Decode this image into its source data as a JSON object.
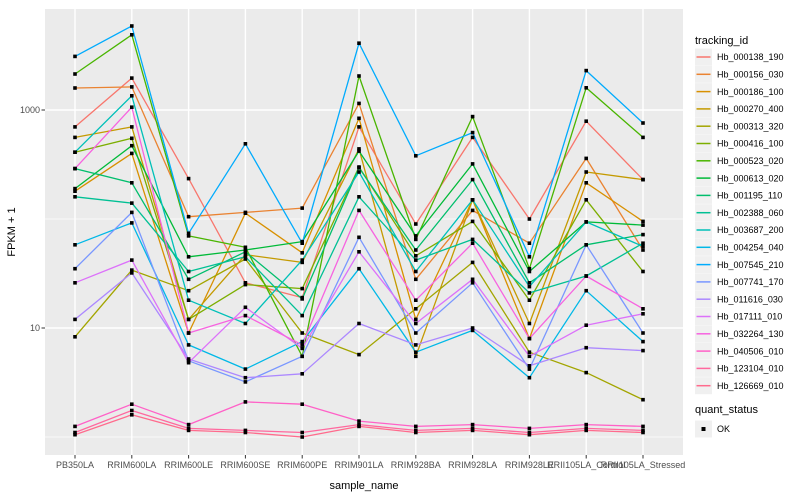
{
  "figure": {
    "panel_bg": "#EBEBEB",
    "grid_color": "#FFFFFF",
    "tick_color": "#333333",
    "tick_label_color": "#4D4D4D",
    "axis_title_color": "#000000",
    "legend_key_bg": "#F0F0F0",
    "marker_color": "#000000"
  },
  "chart_data": {
    "type": "line",
    "title": "",
    "xlabel": "sample_name",
    "ylabel": "FPKM + 1",
    "y_scale": "log10",
    "ylim": [
      0.75,
      8400
    ],
    "grid": true,
    "y_ticks": [
      {
        "value": 10,
        "label": "10"
      },
      {
        "value": 1000,
        "label": "1000"
      }
    ],
    "y_minor": [
      1,
      100
    ],
    "categories": [
      "PB350LA",
      "RRIM600LA",
      "RRIM600LE",
      "RRIM600SE",
      "RRIM600PE",
      "RRIM901LA",
      "RRIM928BA",
      "RRIM928LA",
      "RRIM928LE",
      "RRII105LA_Control",
      "RRII105LA_Stressed"
    ],
    "legend": {
      "title": "tracking_id",
      "position": "right"
    },
    "point_legend": {
      "title": "quant_status",
      "items": [
        {
          "label": "OK",
          "shape": "black-square"
        }
      ]
    },
    "series": [
      {
        "name": "Hb_000138_190",
        "color": "#F8766D",
        "values": [
          700,
          1960,
          235,
          26,
          19,
          700,
          90,
          560,
          100,
          790,
          230
        ]
      },
      {
        "name": "Hb_000156_030",
        "color": "#EA8331",
        "values": [
          1590,
          1630,
          105,
          115,
          126,
          1150,
          28,
          120,
          60,
          360,
          52
        ]
      },
      {
        "name": "Hb_000186_100",
        "color": "#D89000",
        "values": [
          180,
          400,
          9,
          113,
          49,
          840,
          12,
          150,
          8,
          215,
          95
        ]
      },
      {
        "name": "Hb_000270_400",
        "color": "#C49A00",
        "values": [
          560,
          700,
          12,
          47,
          40,
          440,
          5.5,
          150,
          11,
          270,
          230
        ]
      },
      {
        "name": "Hb_000313_320",
        "color": "#A3A500",
        "values": [
          8.3,
          34,
          22,
          43,
          9,
          5.7,
          15,
          40,
          6,
          3.9,
          2.2
        ]
      },
      {
        "name": "Hb_000416_100",
        "color": "#7CAE00",
        "values": [
          410,
          550,
          12,
          25,
          23,
          300,
          46,
          95,
          18,
          150,
          33
        ]
      },
      {
        "name": "Hb_000523_020",
        "color": "#49B500",
        "values": [
          2140,
          4900,
          70,
          55,
          5.5,
          2050,
          65,
          870,
          35,
          1600,
          560
        ]
      },
      {
        "name": "Hb_000613_020",
        "color": "#00BA38",
        "values": [
          190,
          470,
          45,
          52,
          62,
          420,
          70,
          320,
          33,
          94,
          88
        ]
      },
      {
        "name": "Hb_001195_110",
        "color": "#00BE6C",
        "values": [
          290,
          215,
          28,
          50,
          18.5,
          295,
          52,
          230,
          26,
          58,
          72
        ]
      },
      {
        "name": "Hb_002388_060",
        "color": "#00C094",
        "values": [
          160,
          140,
          33,
          45,
          13,
          160,
          42,
          65,
          21,
          30,
          60
        ]
      },
      {
        "name": "Hb_003687_200",
        "color": "#00C0B8",
        "values": [
          410,
          1350,
          18,
          11,
          42,
          270,
          33,
          150,
          24,
          94,
          56
        ]
      },
      {
        "name": "Hb_004254_040",
        "color": "#00B8E7",
        "values": [
          58,
          92,
          7,
          4.2,
          7.5,
          35,
          6,
          9.5,
          3.5,
          22,
          7.5
        ]
      },
      {
        "name": "Hb_007545_210",
        "color": "#00ABFD",
        "values": [
          3100,
          5900,
          74,
          490,
          60,
          4100,
          380,
          620,
          45,
          2300,
          760
        ]
      },
      {
        "name": "Hb_007741_170",
        "color": "#7997FF",
        "values": [
          35,
          115,
          5,
          3.2,
          5.5,
          68,
          9,
          26,
          4.2,
          58,
          9
        ]
      },
      {
        "name": "Hb_011616_030",
        "color": "#AC88FF",
        "values": [
          12,
          32,
          5.2,
          3.5,
          3.8,
          11,
          7,
          10,
          4.5,
          6.6,
          6.2
        ]
      },
      {
        "name": "Hb_017111_010",
        "color": "#DC71FA",
        "values": [
          26,
          42,
          4.8,
          15.5,
          6.5,
          50,
          11,
          28,
          5.5,
          10.6,
          13.5
        ]
      },
      {
        "name": "Hb_032264_130",
        "color": "#F763E0",
        "values": [
          290,
          1060,
          9,
          13,
          7,
          120,
          18,
          60,
          8,
          30,
          15
        ]
      },
      {
        "name": "Hb_040506_010",
        "color": "#FF61C7",
        "values": [
          1.25,
          2.0,
          1.3,
          2.1,
          2.0,
          1.4,
          1.25,
          1.3,
          1.2,
          1.3,
          1.25
        ]
      },
      {
        "name": "Hb_123104_010",
        "color": "#FF689E",
        "values": [
          1.1,
          1.75,
          1.2,
          1.15,
          1.1,
          1.3,
          1.15,
          1.2,
          1.1,
          1.2,
          1.15
        ]
      },
      {
        "name": "Hb_126669_010",
        "color": "#FF6B8D",
        "values": [
          1.05,
          1.6,
          1.15,
          1.1,
          1.0,
          1.25,
          1.1,
          1.15,
          1.05,
          1.15,
          1.1
        ]
      }
    ]
  }
}
